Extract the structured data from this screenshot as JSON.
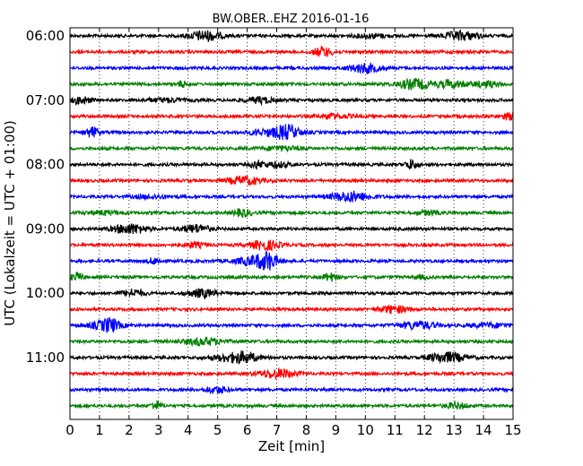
{
  "chart_data": {
    "type": "line",
    "title": "BW.OBER..EHZ 2016-01-16",
    "xlabel": "Zeit  [min]",
    "ylabel": "UTC (Lokalzeit = UTC + 01:00)",
    "xlim": [
      0,
      15
    ],
    "x_ticks": [
      0,
      1,
      2,
      3,
      4,
      5,
      6,
      7,
      8,
      9,
      10,
      11,
      12,
      13,
      14,
      15
    ],
    "y_tick_labels": [
      "06:00",
      "07:00",
      "08:00",
      "09:00",
      "10:00",
      "11:00"
    ],
    "trace_interval_min": 15,
    "grid": "vertical-dotted",
    "colors": [
      "#000000",
      "#ff0000",
      "#0000ff",
      "#008000"
    ],
    "series": [
      {
        "start": "06:00",
        "color": "#000000"
      },
      {
        "start": "06:15",
        "color": "#ff0000"
      },
      {
        "start": "06:30",
        "color": "#0000ff"
      },
      {
        "start": "06:45",
        "color": "#008000"
      },
      {
        "start": "07:00",
        "color": "#000000"
      },
      {
        "start": "07:15",
        "color": "#ff0000"
      },
      {
        "start": "07:30",
        "color": "#0000ff"
      },
      {
        "start": "07:45",
        "color": "#008000"
      },
      {
        "start": "08:00",
        "color": "#000000"
      },
      {
        "start": "08:15",
        "color": "#ff0000"
      },
      {
        "start": "08:30",
        "color": "#0000ff"
      },
      {
        "start": "08:45",
        "color": "#008000"
      },
      {
        "start": "09:00",
        "color": "#000000"
      },
      {
        "start": "09:15",
        "color": "#ff0000"
      },
      {
        "start": "09:30",
        "color": "#0000ff"
      },
      {
        "start": "09:45",
        "color": "#008000"
      },
      {
        "start": "10:00",
        "color": "#000000"
      },
      {
        "start": "10:15",
        "color": "#ff0000"
      },
      {
        "start": "10:30",
        "color": "#0000ff"
      },
      {
        "start": "10:45",
        "color": "#008000"
      },
      {
        "start": "11:00",
        "color": "#000000"
      },
      {
        "start": "11:15",
        "color": "#ff0000"
      },
      {
        "start": "11:30",
        "color": "#0000ff"
      },
      {
        "start": "11:45",
        "color": "#008000"
      }
    ]
  }
}
